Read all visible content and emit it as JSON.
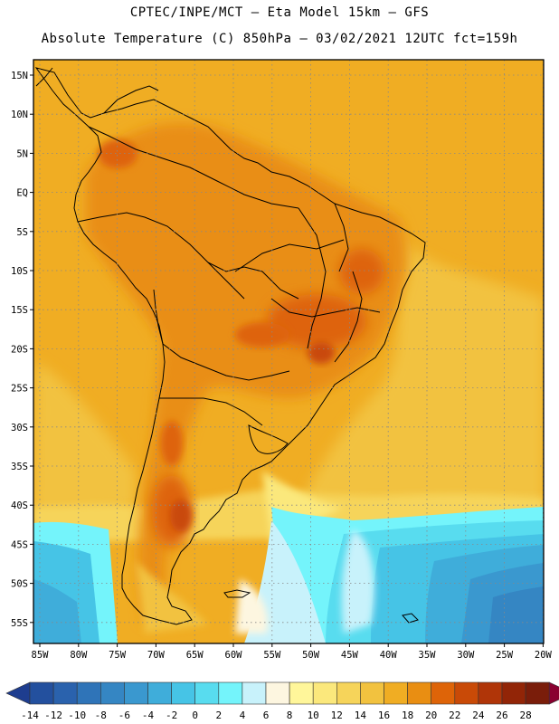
{
  "header": {
    "line1": "CPTEC/INPE/MCT  –  Eta Model 15km  –  GFS",
    "line2": "Absolute Temperature (C) 850hPa – 03/02/2021 12UTC fct=159h"
  },
  "map": {
    "lat_labels": [
      "15N",
      "10N",
      "5N",
      "EQ",
      "5S",
      "10S",
      "15S",
      "20S",
      "25S",
      "30S",
      "35S",
      "40S",
      "45S",
      "50S",
      "55S"
    ],
    "lon_labels": [
      "85W",
      "80W",
      "75W",
      "70W",
      "65W",
      "60W",
      "55W",
      "50W",
      "45W",
      "40W",
      "35W",
      "30W",
      "25W",
      "20W"
    ]
  },
  "colorbar": {
    "ticks": [
      "-14",
      "-12",
      "-10",
      "-8",
      "-6",
      "-4",
      "-2",
      "0",
      "2",
      "4",
      "6",
      "8",
      "10",
      "12",
      "14",
      "16",
      "18",
      "20",
      "22",
      "24",
      "26",
      "28"
    ],
    "colors": [
      "#1e3d8f",
      "#23509e",
      "#2a62ad",
      "#2f74b8",
      "#3586c3",
      "#3a98cf",
      "#3fadda",
      "#46c4e6",
      "#58dcef",
      "#74f4fb",
      "#c8f2fb",
      "#fdf6e0",
      "#fff69a",
      "#fbe87c",
      "#f6d45a",
      "#f2c23f",
      "#f0ad23",
      "#e98e12",
      "#de6408",
      "#c94a07",
      "#b03508",
      "#922507",
      "#7a1d0a",
      "#8a0030"
    ]
  }
}
